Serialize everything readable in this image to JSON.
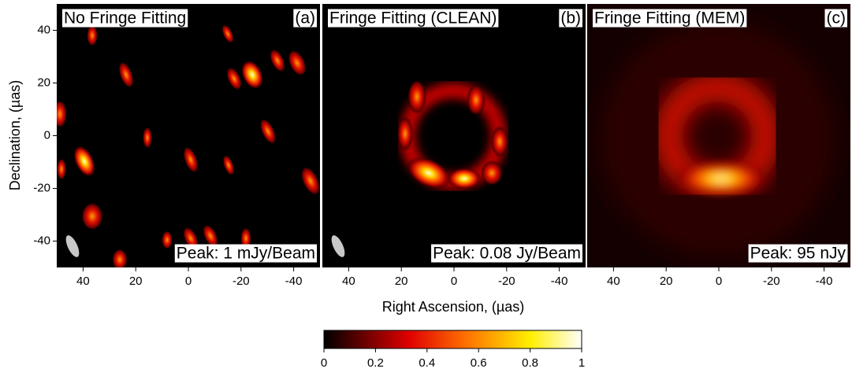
{
  "panels": [
    {
      "title": "No Fringe Fitting",
      "tag": "(a)",
      "peak": "Peak: 1 mJy/Beam"
    },
    {
      "title": "Fringe Fitting (CLEAN)",
      "tag": "(b)",
      "peak": "Peak: 0.08 Jy/Beam"
    },
    {
      "title": "Fringe Fitting (MEM)",
      "tag": "(c)",
      "peak": "Peak: 95 nJy"
    }
  ],
  "xlabel": "Right Ascension, (µas)",
  "ylabel": "Declination, (µas)",
  "xlim": [
    50,
    -50
  ],
  "xticks": [
    40,
    20,
    0,
    -20,
    -40
  ],
  "ylim": [
    -50,
    50
  ],
  "yticks": [
    -40,
    -20,
    0,
    20,
    40
  ],
  "colorbar": {
    "lim": [
      0,
      1
    ],
    "ticks": [
      0,
      0.2,
      0.4,
      0.6,
      0.8,
      1
    ]
  }
}
